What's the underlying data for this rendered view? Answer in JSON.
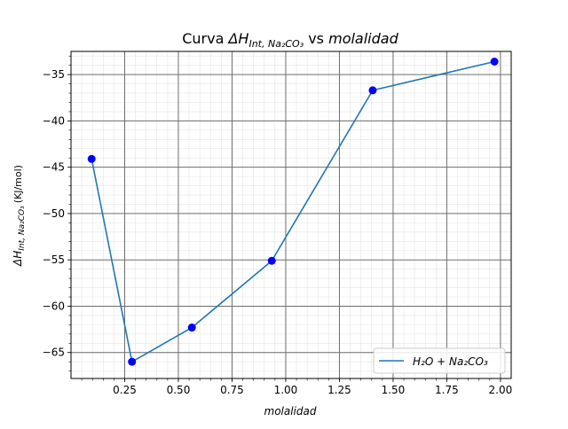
{
  "chart_data": {
    "type": "line",
    "title_parts": [
      "Curva ",
      "ΔH",
      "Int, Na₂CO₃",
      " vs ",
      "molalidad"
    ],
    "xlabel": "molalidad",
    "ylabel_parts": [
      "ΔH",
      "Int, Na₂CO₃",
      "(KJ/mol)"
    ],
    "xlim": [
      0.0,
      2.05
    ],
    "ylim": [
      -67.8,
      -32.5
    ],
    "xticks": [
      0.25,
      0.5,
      0.75,
      1.0,
      1.25,
      1.5,
      1.75,
      2.0
    ],
    "xtick_labels": [
      "0.25",
      "0.50",
      "0.75",
      "1.00",
      "1.25",
      "1.50",
      "1.75",
      "2.00"
    ],
    "yticks": [
      -65,
      -60,
      -55,
      -50,
      -45,
      -40,
      -35
    ],
    "ytick_labels": [
      "−65",
      "−60",
      "−55",
      "−50",
      "−45",
      "−40",
      "−35"
    ],
    "grid": true,
    "legend_position": "bottom-right",
    "series": [
      {
        "name": "H₂O + Na₂CO₃",
        "line_color": "#1f77b4",
        "marker_color": "#0000ff",
        "x": [
          0.096,
          0.284,
          0.563,
          0.935,
          1.405,
          1.972
        ],
        "y": [
          -44.1,
          -66.0,
          -62.3,
          -55.1,
          -36.7,
          -33.6
        ]
      }
    ]
  }
}
